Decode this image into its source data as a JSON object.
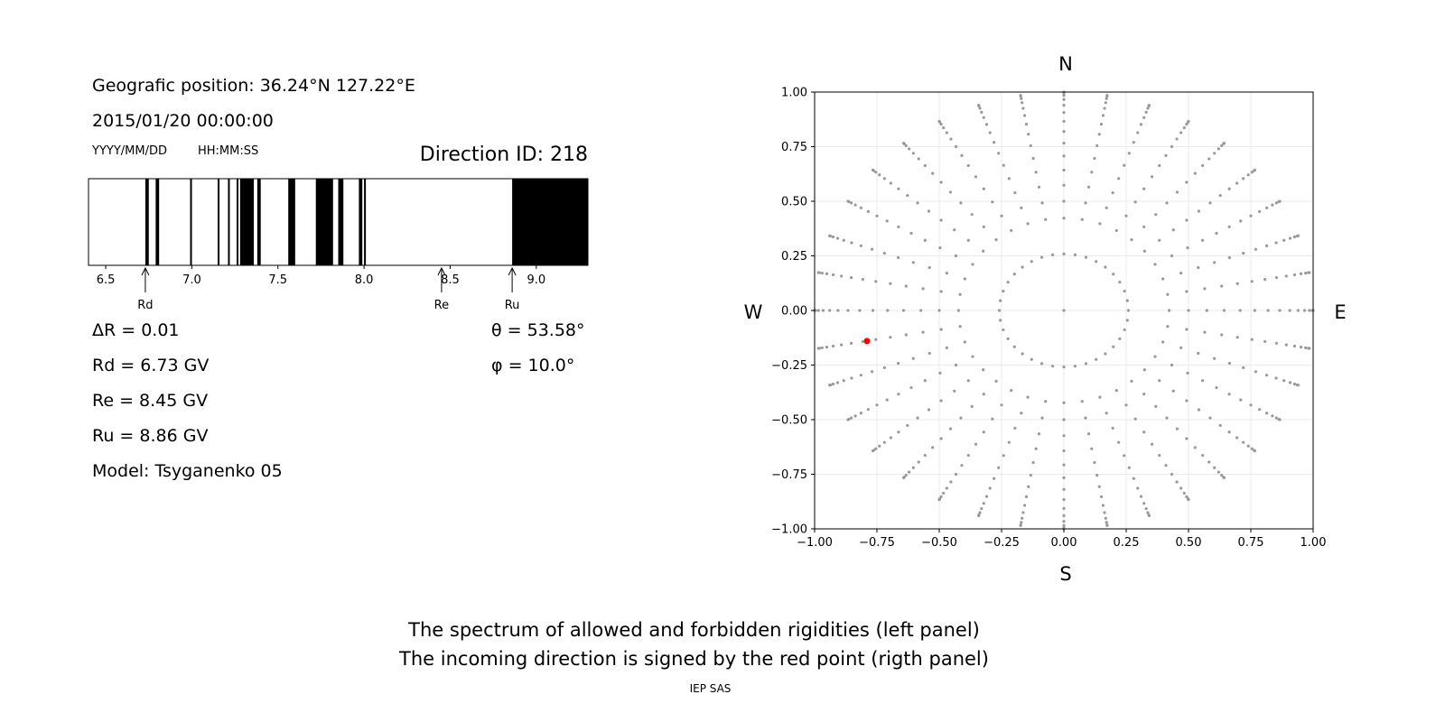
{
  "info": {
    "position": "Geografic position: 36.24°N 127.22°E",
    "datetime": "2015/01/20 00:00:00",
    "date_format": "YYYY/MM/DD",
    "time_format": "HH:MM:SS",
    "direction_id": "Direction ID: 218"
  },
  "values": {
    "delta_r": "ΔR = 0.01",
    "rd": "Rd = 6.73 GV",
    "re": "Re = 8.45 GV",
    "ru": "Ru = 8.86 GV",
    "model": "Model: Tsyganenko 05",
    "theta": "θ = 53.58°",
    "phi": "φ = 10.0°"
  },
  "caption": {
    "line1": "The spectrum of allowed and forbidden rigidities (left panel)",
    "line2": "The incoming direction is signed by the red point (rigth panel)",
    "credit": "IEP SAS"
  },
  "chart_data": [
    {
      "type": "bar",
      "title": "",
      "xlim": [
        6.4,
        9.3
      ],
      "xticks": [
        "6.5",
        "7.0",
        "7.5",
        "8.0",
        "8.5",
        "9.0"
      ],
      "forbidden_intervals": [
        [
          6.73,
          6.75
        ],
        [
          6.79,
          6.81
        ],
        [
          6.99,
          7.0
        ],
        [
          7.15,
          7.16
        ],
        [
          7.21,
          7.22
        ],
        [
          7.26,
          7.27
        ],
        [
          7.28,
          7.36
        ],
        [
          7.38,
          7.4
        ],
        [
          7.56,
          7.6
        ],
        [
          7.72,
          7.82
        ],
        [
          7.85,
          7.88
        ],
        [
          7.97,
          7.99
        ],
        [
          8.0,
          8.01
        ],
        [
          8.86,
          9.3
        ]
      ],
      "markers": [
        {
          "label": "Rd",
          "value": 6.73
        },
        {
          "label": "Re",
          "value": 8.45
        },
        {
          "label": "Ru",
          "value": 8.86
        }
      ],
      "colors": {
        "forbidden": "#000000",
        "allowed": "#ffffff"
      }
    },
    {
      "type": "scatter",
      "title": "",
      "xlim": [
        -1.0,
        1.0
      ],
      "ylim": [
        -1.0,
        1.0
      ],
      "xticks": [
        "−1.00",
        "−0.75",
        "−0.50",
        "−0.25",
        "0.00",
        "0.25",
        "0.50",
        "0.75",
        "1.00"
      ],
      "yticks": [
        "−1.00",
        "−0.75",
        "−0.50",
        "−0.25",
        "0.00",
        "0.25",
        "0.50",
        "0.75",
        "1.00"
      ],
      "grid": true,
      "directions": {
        "top": "N",
        "bottom": "S",
        "left": "W",
        "right": "E"
      },
      "grid_points": {
        "zenith_deg": [
          0,
          15,
          25,
          30,
          35,
          40,
          45,
          50,
          55,
          60,
          65,
          70,
          75,
          80,
          85,
          90
        ],
        "azimuth_step_deg": 10,
        "color": "#999999"
      },
      "highlight": {
        "x": -0.79,
        "y": -0.14,
        "color": "#ff0000"
      }
    }
  ]
}
